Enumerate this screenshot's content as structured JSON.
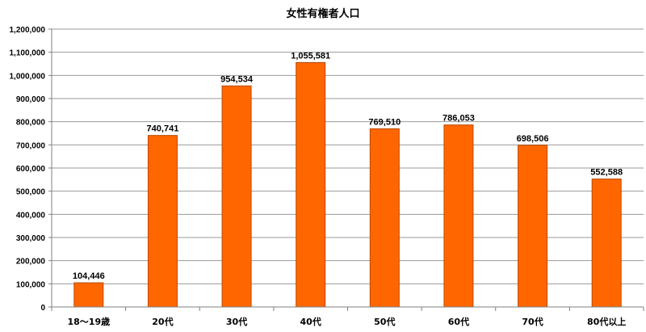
{
  "chart_data": {
    "type": "bar",
    "title": "女性有権者人口",
    "categories": [
      "18～19歳",
      "20代",
      "30代",
      "40代",
      "50代",
      "60代",
      "70代",
      "80代以上"
    ],
    "values": [
      104446,
      740741,
      954534,
      1055581,
      769510,
      786053,
      698506,
      552588
    ],
    "data_labels": [
      "104,446",
      "740,741",
      "954,534",
      "1,055,581",
      "769,510",
      "786,053",
      "698,506",
      "552,588"
    ],
    "ylim": [
      0,
      1200000
    ],
    "y_ticks": [
      0,
      100000,
      200000,
      300000,
      400000,
      500000,
      600000,
      700000,
      800000,
      900000,
      1000000,
      1100000,
      1200000
    ],
    "y_tick_labels": [
      "0",
      "100,000",
      "200,000",
      "300,000",
      "400,000",
      "500,000",
      "600,000",
      "700,000",
      "800,000",
      "900,000",
      "1,000,000",
      "1,100,000",
      "1,200,000"
    ],
    "grid": "horizontal",
    "legend": "none",
    "bar_color": "#FF6600",
    "bar_border_color": "#B84A00",
    "grid_color": "#9A9A9A"
  }
}
